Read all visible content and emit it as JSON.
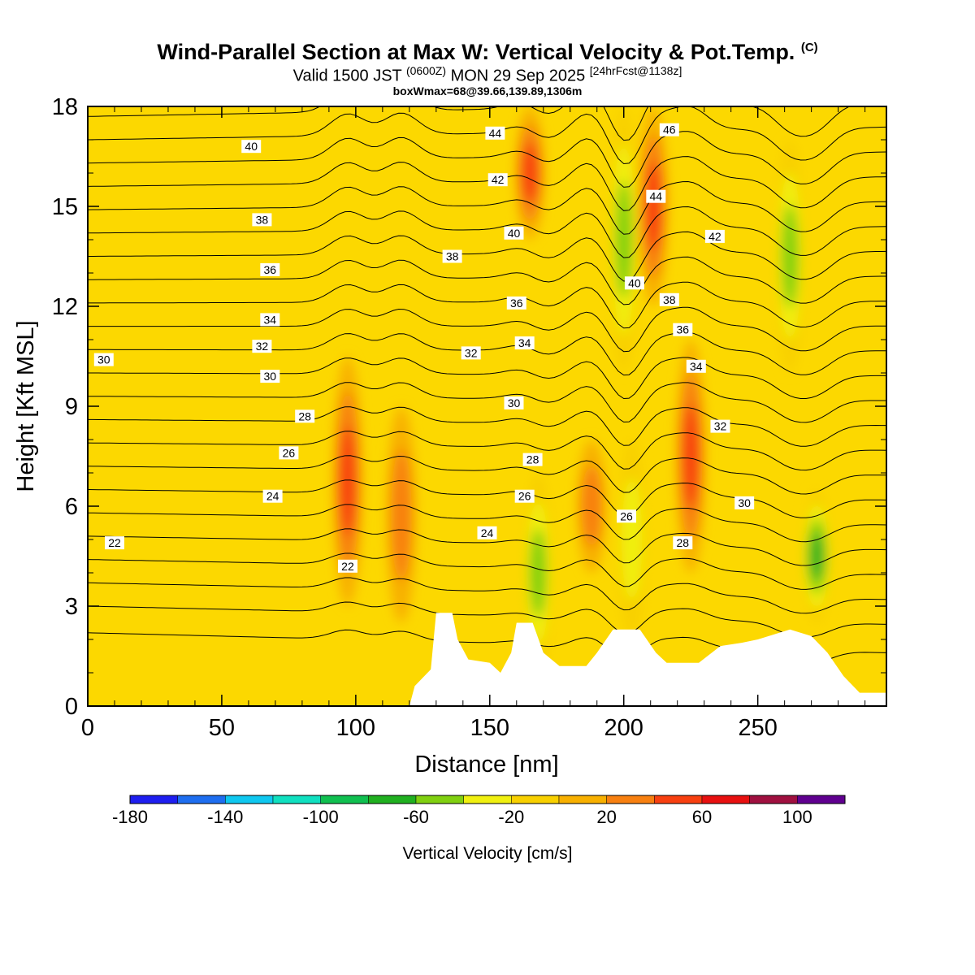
{
  "title": {
    "main": "Wind-Parallel Section at Max W: Vertical Velocity & Pot.Temp.",
    "copyright": "(C)",
    "valid_prefix": "Valid 1500 JST",
    "valid_utc": "(0600Z)",
    "valid_date": "MON 29 Sep 2025",
    "forecast": "[24hrFcst@1138z]",
    "box_info": "boxWmax=68@39.66,139.89,1306m"
  },
  "chart_data": {
    "type": "heatmap",
    "xlabel": "Distance [nm]",
    "ylabel": "Height [Kft MSL]",
    "xlim": [
      0,
      298
    ],
    "ylim": [
      0,
      18
    ],
    "x_ticks": [
      "0",
      "50",
      "100",
      "150",
      "200",
      "250"
    ],
    "y_ticks": [
      "0",
      "3",
      "6",
      "9",
      "12",
      "15",
      "18"
    ],
    "colorbar": {
      "title": "Vertical Velocity [cm/s]",
      "labels": [
        "-180",
        "-140",
        "-100",
        "-60",
        "-20",
        "20",
        "60",
        "100"
      ],
      "levels": [
        -180,
        -160,
        -140,
        -120,
        -100,
        -80,
        -60,
        -40,
        -20,
        0,
        20,
        40,
        60,
        80,
        100,
        120
      ],
      "colors": [
        "#1e1ef0",
        "#1e6ef0",
        "#0fc8f0",
        "#10e0c0",
        "#10c050",
        "#20b020",
        "#80d010",
        "#f0f010",
        "#f8d000",
        "#f8b000",
        "#f88010",
        "#f84010",
        "#e81010",
        "#a01040",
        "#600090"
      ]
    },
    "background_color": "#fcd800",
    "features": [
      {
        "name": "updraft",
        "x": 97,
        "ybottom": 3,
        "ytop": 10.5,
        "w_max": 70
      },
      {
        "name": "updraft",
        "x": 117,
        "ybottom": 2.5,
        "ytop": 9,
        "w_max": 50
      },
      {
        "name": "updraft",
        "x": 165,
        "ybottom": 14,
        "ytop": 18,
        "w_max": 60
      },
      {
        "name": "updraft",
        "x": 188,
        "ybottom": 4,
        "ytop": 8,
        "w_max": 50
      },
      {
        "name": "updraft",
        "x": 211,
        "ybottom": 12,
        "ytop": 18,
        "w_max": 60
      },
      {
        "name": "updraft",
        "x": 225,
        "ybottom": 4,
        "ytop": 11,
        "w_max": 60
      },
      {
        "name": "downdraft",
        "x": 168,
        "ybottom": 1,
        "ytop": 7,
        "w_min": -60
      },
      {
        "name": "downdraft",
        "x": 203,
        "ybottom": 2,
        "ytop": 8,
        "w_min": -50
      },
      {
        "name": "downdraft",
        "x": 200,
        "ybottom": 10,
        "ytop": 18,
        "w_min": -70
      },
      {
        "name": "downdraft",
        "x": 272,
        "ybottom": 2.5,
        "ytop": 6.5,
        "w_min": -90
      },
      {
        "name": "downdraft",
        "x": 262,
        "ybottom": 10,
        "ytop": 17,
        "w_min": -60
      }
    ],
    "terrain": [
      [
        120,
        0
      ],
      [
        122,
        0.6
      ],
      [
        128,
        1.1
      ],
      [
        130,
        2.8
      ],
      [
        136,
        2.8
      ],
      [
        138,
        2
      ],
      [
        142,
        1.4
      ],
      [
        150,
        1.3
      ],
      [
        154,
        1
      ],
      [
        158,
        1.6
      ],
      [
        160,
        2.5
      ],
      [
        166,
        2.5
      ],
      [
        170,
        1.6
      ],
      [
        176,
        1.2
      ],
      [
        186,
        1.2
      ],
      [
        190,
        1.6
      ],
      [
        196,
        2.3
      ],
      [
        206,
        2.3
      ],
      [
        212,
        1.6
      ],
      [
        216,
        1.3
      ],
      [
        228,
        1.3
      ],
      [
        236,
        1.8
      ],
      [
        244,
        1.9
      ],
      [
        250,
        2
      ],
      [
        262,
        2.3
      ],
      [
        270,
        2.1
      ],
      [
        276,
        1.6
      ],
      [
        282,
        0.9
      ],
      [
        288,
        0.4
      ],
      [
        298,
        0.4
      ]
    ],
    "contour_labels": [
      {
        "text": "44",
        "x": 152,
        "y": 17.2
      },
      {
        "text": "46",
        "x": 217,
        "y": 17.3
      },
      {
        "text": "40",
        "x": 61,
        "y": 16.8
      },
      {
        "text": "42",
        "x": 153,
        "y": 15.8
      },
      {
        "text": "44",
        "x": 212,
        "y": 15.3
      },
      {
        "text": "38",
        "x": 65,
        "y": 14.6
      },
      {
        "text": "40",
        "x": 159,
        "y": 14.2
      },
      {
        "text": "42",
        "x": 234,
        "y": 14.1
      },
      {
        "text": "38",
        "x": 136,
        "y": 13.5
      },
      {
        "text": "36",
        "x": 68,
        "y": 13.1
      },
      {
        "text": "40",
        "x": 204,
        "y": 12.7
      },
      {
        "text": "38",
        "x": 217,
        "y": 12.2
      },
      {
        "text": "36",
        "x": 160,
        "y": 12.1
      },
      {
        "text": "34",
        "x": 68,
        "y": 11.6
      },
      {
        "text": "36",
        "x": 222,
        "y": 11.3
      },
      {
        "text": "32",
        "x": 65,
        "y": 10.8
      },
      {
        "text": "34",
        "x": 163,
        "y": 10.9
      },
      {
        "text": "32",
        "x": 143,
        "y": 10.6
      },
      {
        "text": "30",
        "x": 6,
        "y": 10.4
      },
      {
        "text": "34",
        "x": 227,
        "y": 10.2
      },
      {
        "text": "30",
        "x": 68,
        "y": 9.9
      },
      {
        "text": "30",
        "x": 159,
        "y": 9.1
      },
      {
        "text": "28",
        "x": 81,
        "y": 8.7
      },
      {
        "text": "32",
        "x": 236,
        "y": 8.4
      },
      {
        "text": "28",
        "x": 166,
        "y": 7.4
      },
      {
        "text": "26",
        "x": 75,
        "y": 7.6
      },
      {
        "text": "24",
        "x": 69,
        "y": 6.3
      },
      {
        "text": "26",
        "x": 163,
        "y": 6.3
      },
      {
        "text": "30",
        "x": 245,
        "y": 6.1
      },
      {
        "text": "26",
        "x": 201,
        "y": 5.7
      },
      {
        "text": "24",
        "x": 149,
        "y": 5.2
      },
      {
        "text": "22",
        "x": 10,
        "y": 4.9
      },
      {
        "text": "28",
        "x": 222,
        "y": 4.9
      },
      {
        "text": "22",
        "x": 97,
        "y": 4.2
      }
    ]
  }
}
